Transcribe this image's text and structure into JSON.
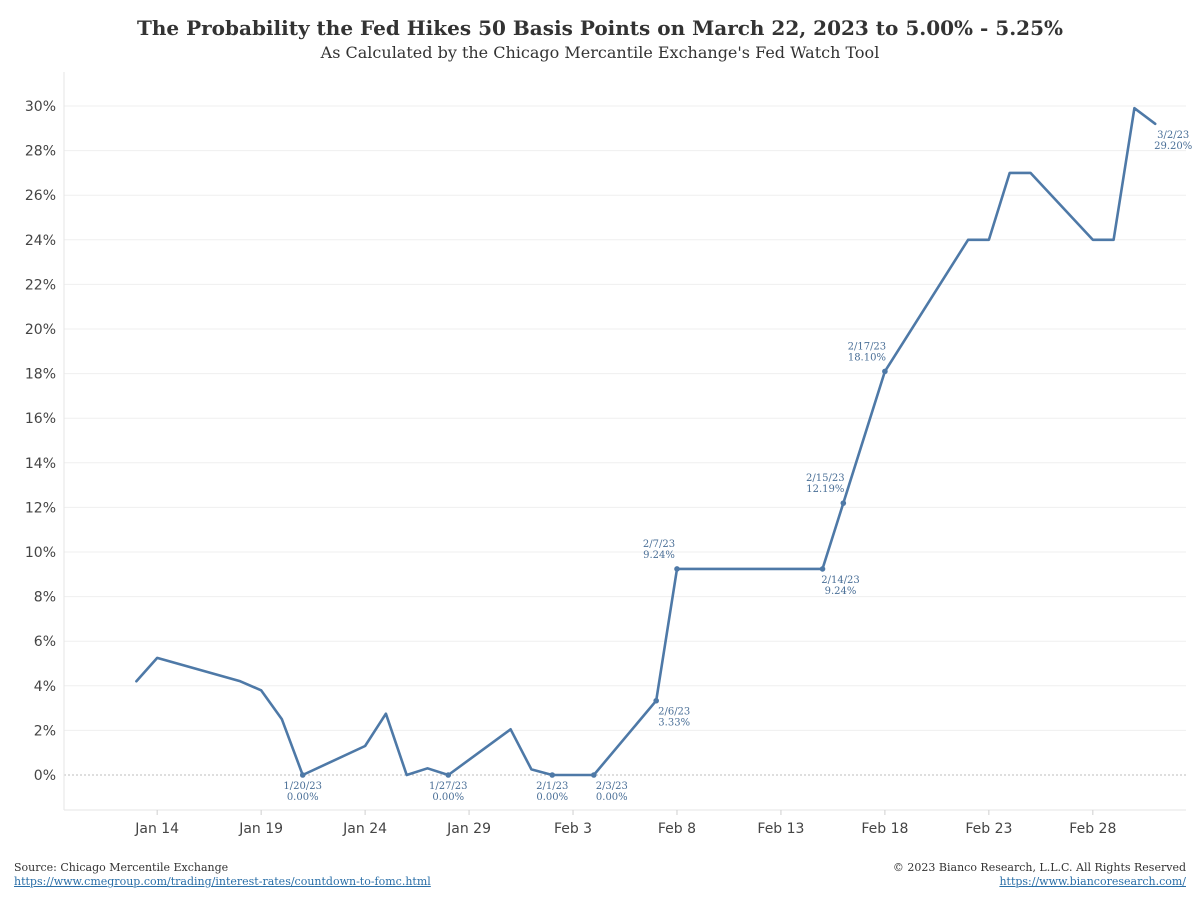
{
  "chart_data": {
    "type": "line",
    "title": "The Probability the Fed Hikes 50 Basis Points on March 22, 2023 to 5.00% - 5.25%",
    "subtitle": "As Calculated by the Chicago Mercantile Exchange's Fed Watch Tool",
    "xlim": [
      "2023-01-10",
      "2023-03-04"
    ],
    "ylim": [
      0,
      30
    ],
    "y_ticks": [
      0,
      2,
      4,
      6,
      8,
      10,
      12,
      14,
      16,
      18,
      20,
      22,
      24,
      26,
      28,
      30
    ],
    "y_tick_suffix": "%",
    "x_ticks": [
      {
        "date": "2023-01-14",
        "label": "Jan 14"
      },
      {
        "date": "2023-01-19",
        "label": "Jan 19"
      },
      {
        "date": "2023-01-24",
        "label": "Jan 24"
      },
      {
        "date": "2023-01-29",
        "label": "Jan 29"
      },
      {
        "date": "2023-02-03",
        "label": "Feb 3"
      },
      {
        "date": "2023-02-08",
        "label": "Feb 8"
      },
      {
        "date": "2023-02-13",
        "label": "Feb 13"
      },
      {
        "date": "2023-02-18",
        "label": "Feb 18"
      },
      {
        "date": "2023-02-23",
        "label": "Feb 23"
      },
      {
        "date": "2023-02-28",
        "label": "Feb 28"
      }
    ],
    "grid": true,
    "color": "#4e79a7",
    "series": [
      {
        "points": [
          {
            "x": "2023-01-13",
            "y": 4.2
          },
          {
            "x": "2023-01-14",
            "y": 5.25
          },
          {
            "x": "2023-01-18",
            "y": 4.2
          },
          {
            "x": "2023-01-19",
            "y": 3.8
          },
          {
            "x": "2023-01-20",
            "y": 2.5
          },
          {
            "x": "2023-01-21",
            "y": 0.0
          },
          {
            "x": "2023-01-24",
            "y": 1.3
          },
          {
            "x": "2023-01-25",
            "y": 2.75
          },
          {
            "x": "2023-01-26",
            "y": 0.0
          },
          {
            "x": "2023-01-27",
            "y": 0.3
          },
          {
            "x": "2023-01-28",
            "y": 0.0
          },
          {
            "x": "2023-01-31",
            "y": 2.05
          },
          {
            "x": "2023-02-01",
            "y": 0.25
          },
          {
            "x": "2023-02-02",
            "y": 0.0
          },
          {
            "x": "2023-02-04",
            "y": 0.0
          },
          {
            "x": "2023-02-07",
            "y": 3.33
          },
          {
            "x": "2023-02-08",
            "y": 9.24
          },
          {
            "x": "2023-02-15",
            "y": 9.24
          },
          {
            "x": "2023-02-16",
            "y": 12.19
          },
          {
            "x": "2023-02-18",
            "y": 18.1
          },
          {
            "x": "2023-02-22",
            "y": 24.0
          },
          {
            "x": "2023-02-23",
            "y": 24.0
          },
          {
            "x": "2023-02-24",
            "y": 27.0
          },
          {
            "x": "2023-02-25",
            "y": 27.0
          },
          {
            "x": "2023-02-28",
            "y": 24.0
          },
          {
            "x": "2023-03-01",
            "y": 24.0
          },
          {
            "x": "2023-03-02",
            "y": 29.9
          },
          {
            "x": "2023-03-03",
            "y": 29.2
          }
        ]
      }
    ],
    "annotations": [
      {
        "x": "2023-01-21",
        "y": 0.0,
        "date": "1/20/23",
        "value": "0.00%",
        "pos": "below",
        "marker": true
      },
      {
        "x": "2023-01-28",
        "y": 0.0,
        "date": "1/27/23",
        "value": "0.00%",
        "pos": "below",
        "marker": true
      },
      {
        "x": "2023-02-02",
        "y": 0.0,
        "date": "2/1/23",
        "value": "0.00%",
        "pos": "below",
        "marker": true
      },
      {
        "x": "2023-02-04",
        "y": 0.0,
        "date": "2/3/23",
        "value": "0.00%",
        "pos": "below-right",
        "marker": true
      },
      {
        "x": "2023-02-07",
        "y": 3.33,
        "date": "2/6/23",
        "value": "3.33%",
        "pos": "below-right",
        "marker": true
      },
      {
        "x": "2023-02-08",
        "y": 9.24,
        "date": "2/7/23",
        "value": "9.24%",
        "pos": "above-left",
        "marker": true
      },
      {
        "x": "2023-02-15",
        "y": 9.24,
        "date": "2/14/23",
        "value": "9.24%",
        "pos": "below-right",
        "marker": true
      },
      {
        "x": "2023-02-16",
        "y": 12.19,
        "date": "2/15/23",
        "value": "12.19%",
        "pos": "above-left",
        "marker": true
      },
      {
        "x": "2023-02-18",
        "y": 18.1,
        "date": "2/17/23",
        "value": "18.10%",
        "pos": "above-left",
        "marker": true
      },
      {
        "x": "2023-03-03",
        "y": 29.2,
        "date": "3/2/23",
        "value": "29.20%",
        "pos": "below-right",
        "marker": false
      }
    ]
  },
  "footer": {
    "source_text": "Source: Chicago Mercentile Exchange",
    "source_url": "https://www.cmegroup.com/trading/interest-rates/countdown-to-fomc.html",
    "copyright": "© 2023 Bianco Research, L.L.C. All Rights Reserved",
    "site_url": "https://www.biancoresearch.com/"
  }
}
